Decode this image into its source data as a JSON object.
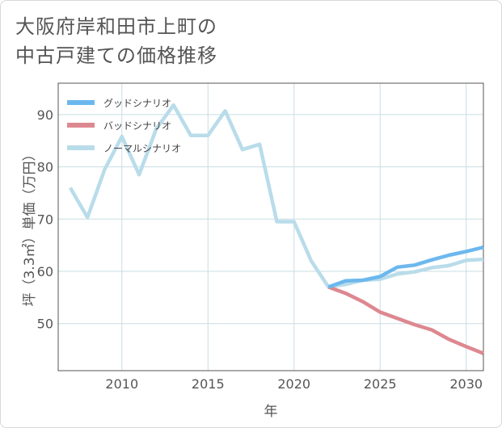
{
  "title_lines": [
    "大阪府岸和田市上町の",
    "中古戸建ての価格推移"
  ],
  "colors": {
    "good": "#6cb8ee",
    "bad": "#dd8890",
    "normal": "#b9dcea",
    "grid": "#c9dde4",
    "axis": "#555555",
    "text": "#555555"
  },
  "chart_data": {
    "type": "line",
    "title": "大阪府岸和田市上町の中古戸建ての価格推移",
    "xlabel": "年",
    "ylabel": "坪（3.3㎡）単価（万円）",
    "xlim": [
      2006.3,
      2031
    ],
    "ylim": [
      41,
      96
    ],
    "xticks": [
      2010,
      2015,
      2020,
      2025,
      2030
    ],
    "yticks": [
      50,
      60,
      70,
      80,
      90
    ],
    "xtick_labels": [
      "2010",
      "2015",
      "2020",
      "2025",
      "2030"
    ],
    "ytick_labels": [
      "50",
      "60",
      "70",
      "80",
      "90"
    ],
    "grid": true,
    "legend_position": "top-left",
    "series": [
      {
        "key": "good",
        "name": "グッドシナリオ",
        "x": [
          2022,
          2023,
          2024,
          2025,
          2026,
          2027,
          2028,
          2029,
          2030,
          2031
        ],
        "y": [
          57.0,
          58.2,
          58.3,
          59.0,
          60.8,
          61.2,
          62.2,
          63.1,
          63.8,
          64.6
        ]
      },
      {
        "key": "bad",
        "name": "バッドシナリオ",
        "x": [
          2022,
          2023,
          2024,
          2025,
          2026,
          2027,
          2028,
          2029,
          2030,
          2031
        ],
        "y": [
          57.0,
          55.8,
          54.2,
          52.2,
          51.0,
          49.8,
          48.8,
          47.0,
          45.6,
          44.3
        ]
      },
      {
        "key": "normal",
        "name": "ノーマルシナリオ",
        "x": [
          2007,
          2008,
          2009,
          2010,
          2011,
          2012,
          2013,
          2014,
          2015,
          2016,
          2017,
          2018,
          2019,
          2020,
          2021,
          2022,
          2023,
          2024,
          2025,
          2026,
          2027,
          2028,
          2029,
          2030,
          2031
        ],
        "y": [
          76.0,
          70.3,
          79.5,
          85.8,
          78.5,
          87.3,
          91.8,
          86.0,
          86.0,
          90.7,
          83.3,
          84.3,
          69.5,
          69.5,
          62.0,
          57.0,
          57.5,
          58.3,
          58.5,
          59.5,
          59.9,
          60.7,
          61.1,
          62.1,
          62.3
        ]
      }
    ]
  }
}
